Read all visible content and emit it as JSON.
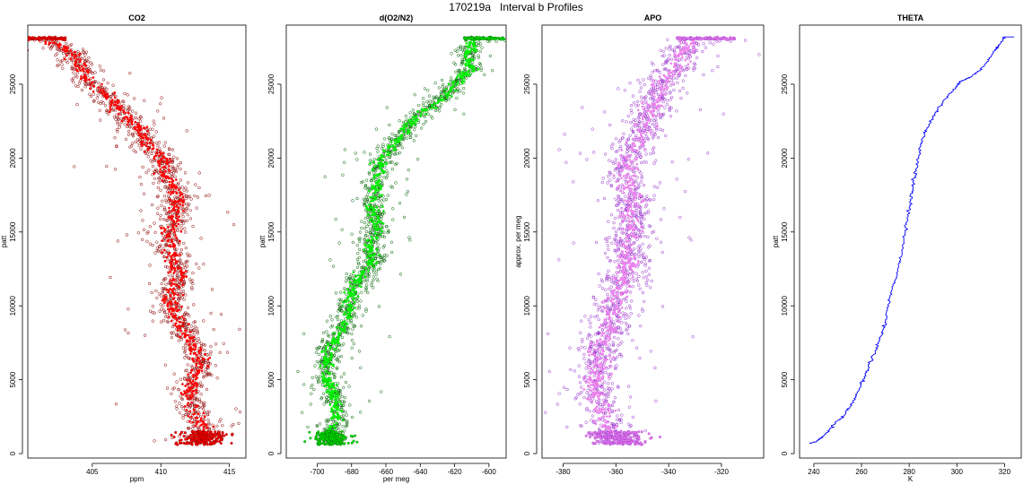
{
  "figure": {
    "title": "170219a   Interval b Profiles"
  },
  "colors": {
    "co2": "#ff0000",
    "co2_edge": "#8b0000",
    "o2n2": "#00ee00",
    "o2n2_edge": "#006400",
    "apo": "#ee82ee",
    "apo_edge": "#9932cc",
    "theta": "#0000ff"
  },
  "chart_data": [
    {
      "type": "scatter",
      "title": "CO2",
      "xlabel": "ppm",
      "ylabel": "patt",
      "xlim": [
        400.3,
        416.2
      ],
      "ylim": [
        -300,
        29000
      ],
      "xticks": [
        405,
        410,
        415
      ],
      "yticks": [
        0,
        5000,
        10000,
        15000,
        20000,
        25000
      ],
      "profile": [
        [
          400.7,
          28100
        ],
        [
          401.5,
          28000
        ],
        [
          403.4,
          27200
        ],
        [
          404.2,
          26000
        ],
        [
          405.0,
          25000
        ],
        [
          406.3,
          24000
        ],
        [
          407.2,
          23000
        ],
        [
          408.4,
          22000
        ],
        [
          409.0,
          21000
        ],
        [
          410.1,
          20000
        ],
        [
          410.3,
          19000
        ],
        [
          410.9,
          18000
        ],
        [
          411.2,
          17000
        ],
        [
          411.0,
          16000
        ],
        [
          410.6,
          15000
        ],
        [
          410.8,
          14000
        ],
        [
          410.9,
          13000
        ],
        [
          411.4,
          12000
        ],
        [
          410.9,
          11000
        ],
        [
          410.6,
          10000
        ],
        [
          411.3,
          9000
        ],
        [
          411.8,
          8000
        ],
        [
          412.6,
          7000
        ],
        [
          412.9,
          6000
        ],
        [
          412.4,
          5000
        ],
        [
          412.0,
          4000
        ],
        [
          412.3,
          3000
        ],
        [
          413.0,
          2000
        ],
        [
          413.2,
          1200
        ],
        [
          412.8,
          700
        ]
      ],
      "spread": 0.9,
      "color": "#ff0000"
    },
    {
      "type": "scatter",
      "title": "d(O2/N2)",
      "xlabel": "per meg",
      "ylabel": "patt",
      "xlim": [
        -718,
        -590
      ],
      "ylim": [
        -300,
        29000
      ],
      "xticks": [
        -700,
        -680,
        -660,
        -640,
        -620,
        -600
      ],
      "yticks": [
        0,
        5000,
        10000,
        15000,
        20000,
        25000
      ],
      "profile": [
        [
          -600,
          28100
        ],
        [
          -610,
          28000
        ],
        [
          -612,
          27000
        ],
        [
          -611,
          26000
        ],
        [
          -620,
          25000
        ],
        [
          -628,
          24000
        ],
        [
          -640,
          23000
        ],
        [
          -648,
          22000
        ],
        [
          -655,
          21000
        ],
        [
          -662,
          20000
        ],
        [
          -664,
          19000
        ],
        [
          -666,
          18000
        ],
        [
          -668,
          17000
        ],
        [
          -667,
          16000
        ],
        [
          -665,
          15000
        ],
        [
          -670,
          14000
        ],
        [
          -668,
          13000
        ],
        [
          -675,
          12000
        ],
        [
          -680,
          11000
        ],
        [
          -682,
          10000
        ],
        [
          -683,
          9000
        ],
        [
          -688,
          8000
        ],
        [
          -693,
          7000
        ],
        [
          -694,
          6000
        ],
        [
          -695,
          5000
        ],
        [
          -690,
          4000
        ],
        [
          -688,
          3000
        ],
        [
          -690,
          2000
        ],
        [
          -692,
          1200
        ],
        [
          -690,
          700
        ]
      ],
      "spread": 5.5,
      "color": "#00ee00"
    },
    {
      "type": "scatter",
      "title": "APO",
      "xlabel": "",
      "ylabel": "approx. per meg",
      "xlim": [
        -388,
        -304
      ],
      "ylim": [
        -300,
        29000
      ],
      "xticks": [
        -380,
        -360,
        -340,
        -320
      ],
      "yticks": [
        0,
        5000,
        10000,
        15000,
        20000,
        25000
      ],
      "profile": [
        [
          -325,
          28100
        ],
        [
          -332,
          28000
        ],
        [
          -335,
          27000
        ],
        [
          -338,
          26000
        ],
        [
          -342,
          25000
        ],
        [
          -345,
          24000
        ],
        [
          -347,
          23000
        ],
        [
          -350,
          22000
        ],
        [
          -352,
          21000
        ],
        [
          -355,
          20000
        ],
        [
          -356,
          19000
        ],
        [
          -355,
          18000
        ],
        [
          -354,
          17000
        ],
        [
          -355,
          16000
        ],
        [
          -353,
          15000
        ],
        [
          -357,
          14000
        ],
        [
          -355,
          13000
        ],
        [
          -357,
          12000
        ],
        [
          -360,
          11000
        ],
        [
          -362,
          10000
        ],
        [
          -361,
          9000
        ],
        [
          -364,
          8000
        ],
        [
          -366,
          7000
        ],
        [
          -366,
          6000
        ],
        [
          -368,
          5000
        ],
        [
          -367,
          4000
        ],
        [
          -365,
          3000
        ],
        [
          -363,
          2000
        ],
        [
          -360,
          1200
        ],
        [
          -358,
          700
        ]
      ],
      "spread": 6.0,
      "color": "#ee82ee"
    },
    {
      "type": "line",
      "title": "THETA",
      "xlabel": "K",
      "ylabel": "patt",
      "xlim": [
        234,
        327
      ],
      "ylim": [
        -300,
        29000
      ],
      "xticks": [
        240,
        260,
        280,
        300,
        320
      ],
      "yticks": [
        0,
        5000,
        10000,
        15000,
        20000,
        25000
      ],
      "x": [
        238,
        241,
        244,
        248,
        252,
        255,
        258,
        260,
        262,
        264,
        266,
        268,
        270,
        271,
        272,
        274,
        276,
        277,
        278,
        279,
        280,
        281,
        282,
        283,
        284,
        285,
        287,
        289,
        292,
        295,
        299,
        302,
        306,
        310,
        313,
        316,
        318,
        320,
        324
      ],
      "y": [
        700,
        800,
        1200,
        1900,
        2500,
        3200,
        4000,
        4800,
        5500,
        6300,
        7100,
        7900,
        8800,
        9800,
        10800,
        11800,
        12800,
        13700,
        14600,
        15600,
        16600,
        17500,
        18400,
        19300,
        20200,
        21000,
        21800,
        22500,
        23300,
        24000,
        24700,
        25200,
        25500,
        26000,
        26600,
        27300,
        27700,
        28200,
        28200
      ],
      "color": "#0000ff"
    }
  ]
}
